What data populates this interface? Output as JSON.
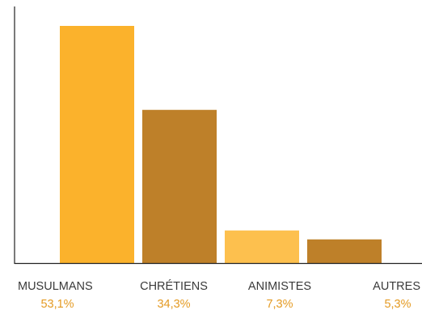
{
  "chart_data": {
    "type": "bar",
    "title": "",
    "xlabel": "",
    "ylabel": "",
    "grid": false,
    "categories": [
      "MUSULMANS",
      "CHRÉTIENS",
      "ANIMISTES",
      "AUTRES"
    ],
    "values": [
      53.1,
      34.3,
      7.3,
      5.3
    ],
    "value_labels": [
      "53,1%",
      "34,3%",
      "7,3%",
      "5,3%"
    ],
    "bar_colors": [
      "#FBB22C",
      "#BE8029",
      "#FDC04E",
      "#BE8029"
    ],
    "value_label_color": "#E49A22",
    "axis_color": "#222222",
    "ylim": [
      0,
      54
    ]
  }
}
